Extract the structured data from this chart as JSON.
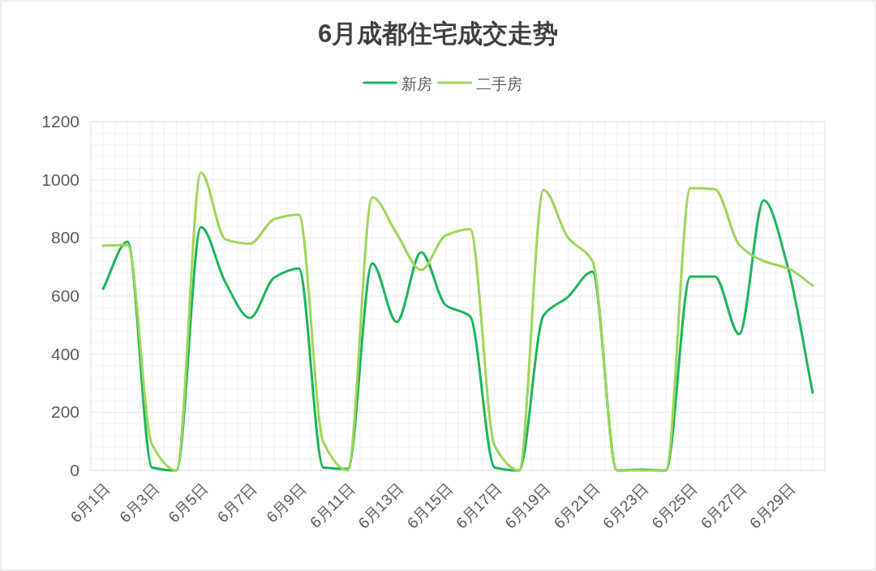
{
  "chart_data": {
    "type": "line",
    "title": "6月成都住宅成交走势",
    "categories": [
      "6月1日",
      null,
      "6月3日",
      null,
      "6月5日",
      null,
      "6月7日",
      null,
      "6月9日",
      null,
      "6月11日",
      null,
      "6月13日",
      null,
      "6月15日",
      null,
      "6月17日",
      null,
      "6月19日",
      null,
      "6月21日",
      null,
      "6月23日",
      null,
      "6月25日",
      null,
      "6月27日",
      null,
      "6月29日",
      null
    ],
    "series": [
      {
        "name": "新房",
        "color": "#1db55a",
        "values": [
          625,
          787,
          10,
          0,
          837,
          647,
          525,
          664,
          695,
          10,
          5,
          712,
          511,
          751,
          569,
          530,
          10,
          0,
          533,
          597,
          684,
          0,
          3,
          0,
          667,
          667,
          469,
          929,
          695,
          268
        ]
      },
      {
        "name": "二手房",
        "color": "#9ed65a",
        "values": [
          773,
          776,
          89,
          0,
          1025,
          795,
          780,
          865,
          880,
          98,
          0,
          940,
          815,
          690,
          808,
          830,
          85,
          0,
          965,
          801,
          720,
          0,
          0,
          0,
          971,
          968,
          776,
          720,
          695,
          636
        ]
      }
    ],
    "ylim": [
      0,
      1200
    ],
    "yticks": [
      0,
      200,
      400,
      600,
      800,
      1000,
      1200
    ],
    "grid": true,
    "legend": "top"
  }
}
